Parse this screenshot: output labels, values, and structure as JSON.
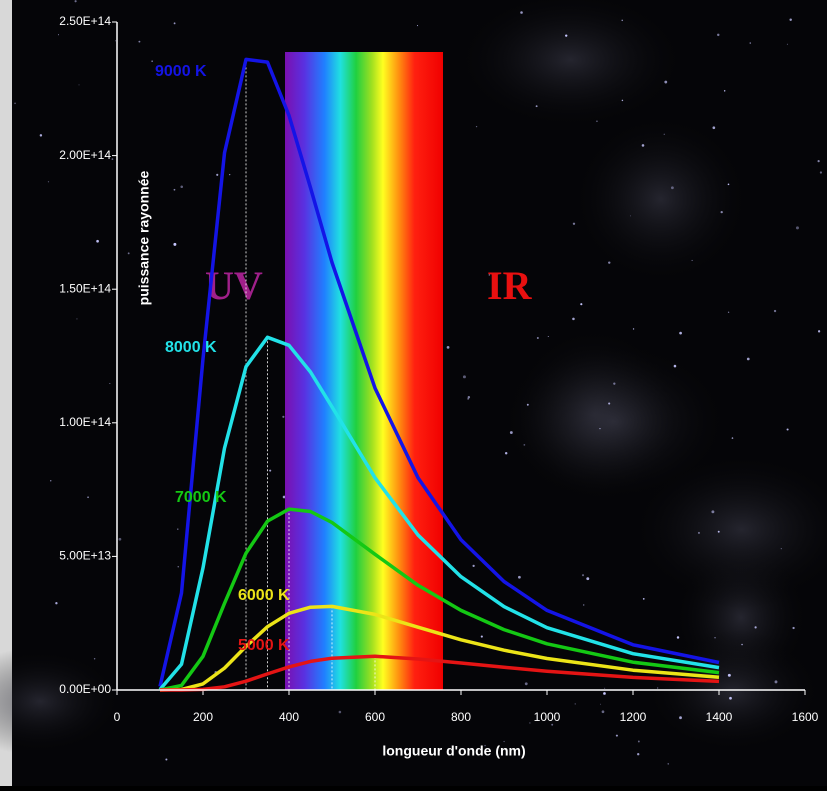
{
  "chart_data": {
    "type": "line",
    "x_label": "longueur d'onde (nm)",
    "y_label": "puissance rayonnée",
    "annotations": [
      "UV",
      "IR"
    ],
    "x": [
      100,
      150,
      200,
      250,
      300,
      350,
      400,
      450,
      500,
      600,
      700,
      800,
      900,
      1000,
      1200,
      1400
    ],
    "series": [
      {
        "name": "9000 K",
        "color": "#1414e6",
        "values": [
          1300000000000.0,
          36300000000000.0,
          124000000000000.0,
          201000000000000.0,
          236000000000000.0,
          235000000000000.0,
          215000000000000.0,
          188000000000000.0,
          160000000000000.0,
          113000000000000.0,
          79400000000000.0,
          56200000000000.0,
          40600000000000.0,
          29800000000000.0,
          16900000000000.0,
          10300000000000.0
        ]
      },
      {
        "name": "8000 K",
        "color": "#22e2e8",
        "values": [
          180000000000.0,
          9600000000000.0,
          45700000000000.0,
          90500000000000.0,
          121000000000000.0,
          132000000000000.0,
          129000000000000.0,
          119000000000000.0,
          106000000000000.0,
          79400000000000.0,
          58000000000000.0,
          42400000000000.0,
          31200000000000.0,
          23300000000000.0,
          13600000000000.0,
          8400000000000.0
        ]
      },
      {
        "name": "7000 K",
        "color": "#14c814",
        "values": [
          14000000000.0,
          1740000000000.0,
          12600000000000.0,
          32400000000000.0,
          51200000000000.0,
          63200000000000.0,
          67700000000000.0,
          66800000000000.0,
          62700000000000.0,
          50800000000000.0,
          39200000000000.0,
          29800000000000.0,
          22600000000000.0,
          17300000000000.0,
          10400000000000.0,
          6500000000000.0
        ]
      },
      {
        "name": "6000 K",
        "color": "#ece418",
        "values": [
          0,
          170000000000.0,
          2280000000000.0,
          8210000000000.0,
          16300000000000.0,
          23700000000000.0,
          28700000000000.0,
          31000000000000.0,
          31300000000000.0,
          28300000000000.0,
          23500000000000.0,
          18800000000000.0,
          14900000000000.0,
          11800000000000.0,
          7400000000000.0,
          4800000000000.0
        ]
      },
      {
        "name": "5000 K",
        "color": "#e41414",
        "values": [
          0,
          0,
          210000000000.0,
          1210000000000.0,
          3300000000000.0,
          6010000000000.0,
          8630000000000.0,
          10700000000000.0,
          11900000000000.0,
          12600000000000.0,
          11600000000000.0,
          10100000000000.0,
          8500000000000.0,
          7000000000000.0,
          4700000000000.0,
          3200000000000.0
        ]
      }
    ],
    "xlim": [
      0,
      1600
    ],
    "ylim": [
      0,
      250000000000000.0
    ],
    "xticks": [
      0,
      200,
      400,
      600,
      800,
      1000,
      1200,
      1400,
      1600
    ],
    "yticks": [
      {
        "value": 0,
        "label": "0.00E+00"
      },
      {
        "value": 50000000000000.0,
        "label": "5.00E+13"
      },
      {
        "value": 100000000000000.0,
        "label": "1.00E+14"
      },
      {
        "value": 150000000000000.0,
        "label": "1.50E+14"
      },
      {
        "value": 200000000000000.0,
        "label": "2.00E+14"
      },
      {
        "value": 250000000000000.0,
        "label": "2.50E+14"
      }
    ]
  }
}
